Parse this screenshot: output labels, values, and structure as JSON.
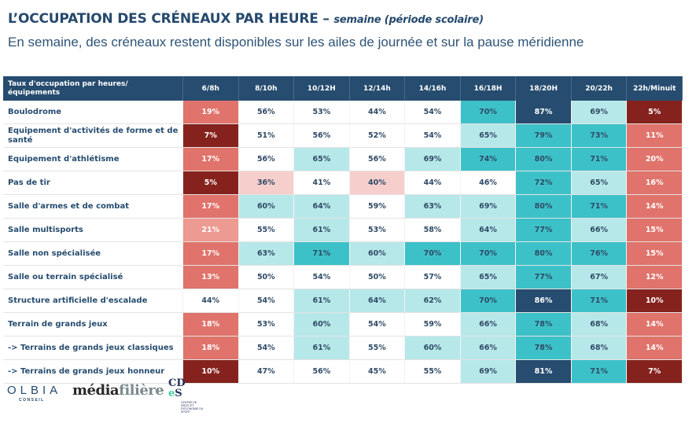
{
  "header": {
    "title_main": "L’OCCUPATION DES CRÉNEAUX PAR HEURE – ",
    "title_sub": "semaine (période scolaire)",
    "subtitle": "En semaine, des créneaux restent disponibles sur les ailes de journée et sur la pause méridienne"
  },
  "chart_data": {
    "type": "heatmap",
    "title": "L’OCCUPATION DES CRÉNEAUX PAR HEURE – semaine (période scolaire)",
    "subtitle": "En semaine, des créneaux restent disponibles sur les ailes de journée et sur la pause méridienne",
    "corner_label": "Taux d'occupation par heures/ équipements",
    "columns": [
      "6/8h",
      "8/10h",
      "10/12H",
      "12/14h",
      "14/16h",
      "16/18H",
      "18/20H",
      "20/22h",
      "22h/Minuit"
    ],
    "unit": "%",
    "rows": [
      {
        "label": "Boulodrome",
        "values": [
          19,
          56,
          53,
          44,
          54,
          70,
          87,
          69,
          5
        ]
      },
      {
        "label": "Equipement d'activités de forme et de santé",
        "values": [
          7,
          51,
          56,
          52,
          54,
          65,
          79,
          73,
          11
        ]
      },
      {
        "label": "Equipement d'athlétisme",
        "values": [
          17,
          56,
          65,
          56,
          69,
          74,
          80,
          71,
          20
        ]
      },
      {
        "label": "Pas de tir",
        "values": [
          5,
          36,
          41,
          40,
          44,
          46,
          72,
          65,
          16
        ]
      },
      {
        "label": "Salle d'armes et de combat",
        "values": [
          17,
          60,
          64,
          59,
          63,
          69,
          80,
          71,
          14
        ]
      },
      {
        "label": "Salle multisports",
        "values": [
          21,
          55,
          61,
          53,
          58,
          64,
          77,
          66,
          15
        ]
      },
      {
        "label": "Salle non spécialisée",
        "values": [
          17,
          63,
          71,
          60,
          70,
          70,
          80,
          76,
          15
        ]
      },
      {
        "label": "Salle ou terrain spécialisé",
        "values": [
          13,
          50,
          54,
          50,
          57,
          65,
          77,
          67,
          12
        ]
      },
      {
        "label": "Structure artificielle d'escalade",
        "values": [
          44,
          54,
          61,
          64,
          62,
          70,
          86,
          71,
          10
        ]
      },
      {
        "label": "Terrain de grands jeux",
        "values": [
          18,
          53,
          60,
          54,
          59,
          66,
          78,
          68,
          14
        ]
      },
      {
        "label": "-> Terrains de grands jeux classiques",
        "values": [
          18,
          54,
          61,
          55,
          60,
          66,
          78,
          68,
          14
        ]
      },
      {
        "label": "-> Terrains de grands jeux honneur",
        "values": [
          10,
          47,
          56,
          45,
          55,
          69,
          81,
          71,
          7
        ]
      }
    ],
    "color_scale": {
      "dark_red_max": 10,
      "red_max": 20,
      "pink_max": 30,
      "blush_max": 40,
      "white_max": 59,
      "light_teal_max": 69,
      "teal_max": 80,
      "navy_above": 80
    },
    "colors": {
      "dark_red": "#85221d",
      "red": "#e0736b",
      "pink": "#ec9a92",
      "blush": "#f6cfcc",
      "white": "#ffffff",
      "light_teal": "#b7e8e9",
      "teal": "#3dc1c8",
      "navy": "#264c6f"
    }
  },
  "logos": {
    "olbia": "OLBIA",
    "olbia_sub": "CONSEIL",
    "media_a": "média",
    "media_b": "filière",
    "cdes_top": "CD",
    "cdes_e": "e",
    "cdes_s": "S",
    "cdes_small": "CENTRE DE DROIT ET D'ÉCONOMIE DU SPORT"
  }
}
